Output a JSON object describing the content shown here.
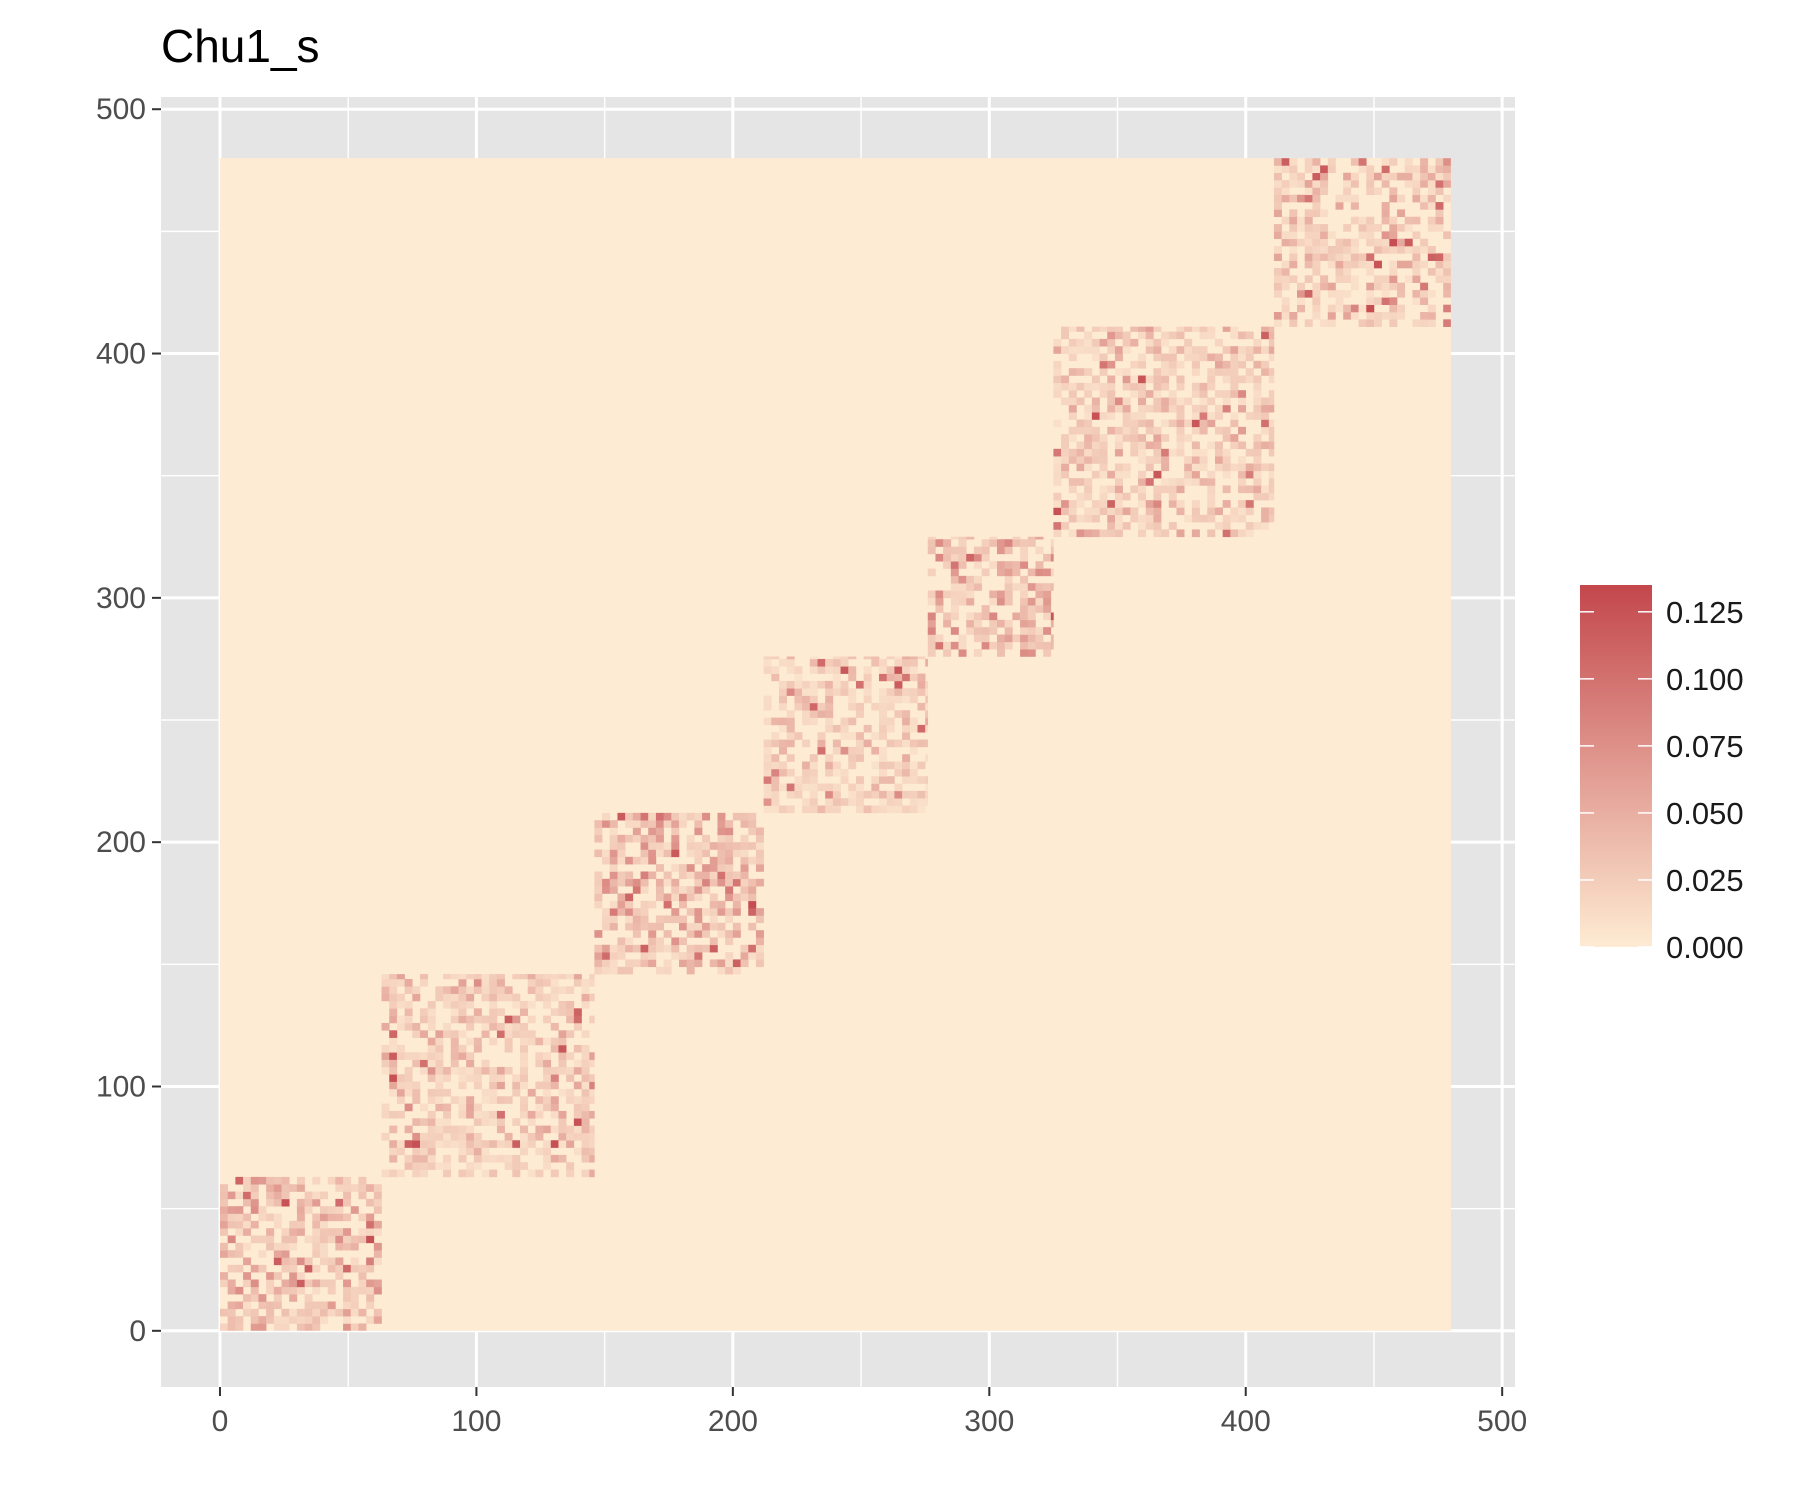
{
  "chart_data": {
    "type": "heatmap",
    "title": "Chu1_s",
    "xlabel": "",
    "ylabel": "",
    "xlim": [
      -23,
      505
    ],
    "ylim": [
      -23,
      505
    ],
    "x_ticks": [
      0,
      100,
      200,
      300,
      400,
      500
    ],
    "y_ticks": [
      0,
      100,
      200,
      300,
      400,
      500
    ],
    "x_minor_ticks": [
      50,
      150,
      250,
      350,
      450
    ],
    "y_minor_ticks": [
      50,
      150,
      250,
      350,
      450
    ],
    "matrix_extent": [
      0,
      480
    ],
    "grid": true,
    "background_value": 0.0,
    "colors": {
      "panel_background": "#e5e5e5",
      "grid_line": "#ffffff",
      "low": "#feebd3",
      "high": "#c3474c"
    },
    "blocks": [
      {
        "start": 0,
        "end": 63,
        "intensity": 0.045
      },
      {
        "start": 63,
        "end": 146,
        "intensity": 0.035
      },
      {
        "start": 146,
        "end": 212,
        "intensity": 0.045
      },
      {
        "start": 212,
        "end": 276,
        "intensity": 0.03
      },
      {
        "start": 276,
        "end": 325,
        "intensity": 0.05
      },
      {
        "start": 325,
        "end": 411,
        "intensity": 0.035
      },
      {
        "start": 411,
        "end": 480,
        "intensity": 0.035
      }
    ],
    "legend": {
      "placement": "right",
      "min": 0.0,
      "max": 0.135,
      "breaks": [
        {
          "value": 0.0,
          "label": "0.000"
        },
        {
          "value": 0.025,
          "label": "0.025"
        },
        {
          "value": 0.05,
          "label": "0.050"
        },
        {
          "value": 0.075,
          "label": "0.075"
        },
        {
          "value": 0.1,
          "label": "0.100"
        },
        {
          "value": 0.125,
          "label": "0.125"
        }
      ]
    }
  }
}
